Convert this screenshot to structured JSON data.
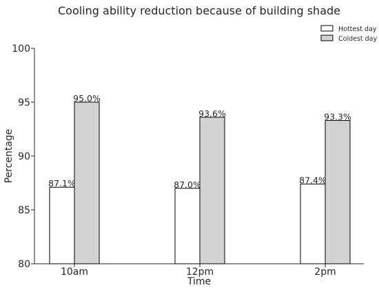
{
  "chart_data": {
    "type": "bar",
    "title": "Cooling ability reduction because of building shade",
    "xlabel": "Time",
    "ylabel": "Percentage",
    "categories": [
      "10am",
      "12pm",
      "2pm"
    ],
    "ylim": [
      80,
      100
    ],
    "yticks": [
      80,
      85,
      90,
      95,
      100
    ],
    "grid": false,
    "legend_position": "top-right",
    "series": [
      {
        "name": "Hottest day",
        "values": [
          87.1,
          87.0,
          87.4
        ],
        "labels": [
          "87.1%",
          "87.0%",
          "87.4%"
        ],
        "color": "#ffffff"
      },
      {
        "name": "Coldest day",
        "values": [
          95.0,
          93.6,
          93.3
        ],
        "labels": [
          "95.0%",
          "93.6%",
          "93.3%"
        ],
        "color": "#d3d3d3"
      }
    ]
  }
}
